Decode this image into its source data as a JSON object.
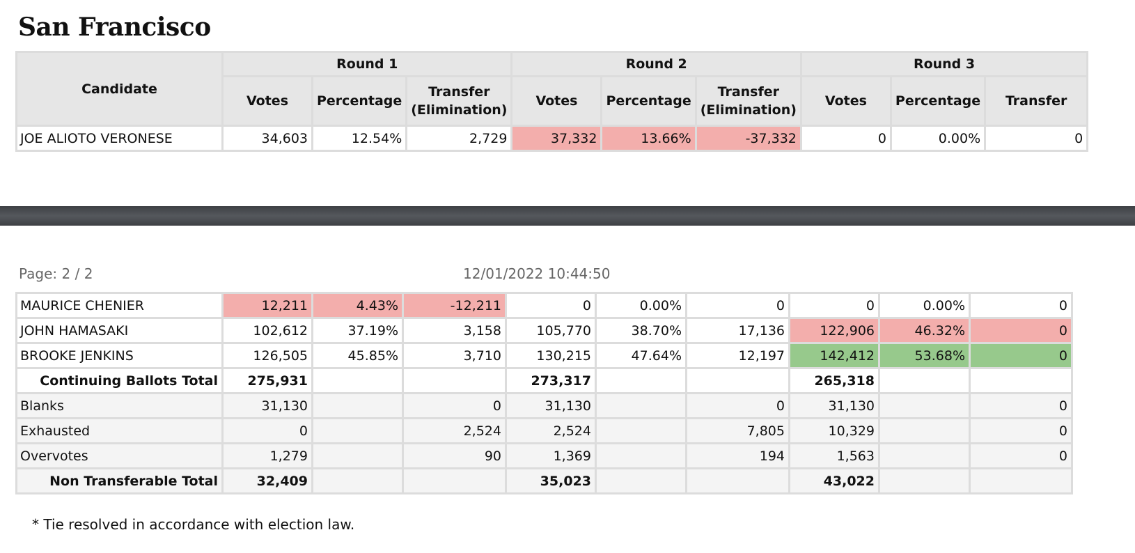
{
  "title": "San Francisco",
  "header": {
    "candidate": "Candidate",
    "rounds": [
      "Round 1",
      "Round 2",
      "Round 3"
    ],
    "sub": {
      "votes": "Votes",
      "percentage": "Percentage",
      "transfer_elim": "Transfer (Elimination)",
      "transfer": "Transfer"
    }
  },
  "top_rows": [
    {
      "name": "JOE ALIOTO VERONESE",
      "r1": [
        "34,603",
        "12.54%",
        "2,729"
      ],
      "r2": [
        "37,332",
        "13.66%",
        "-37,332"
      ],
      "r3": [
        "0",
        "0.00%",
        "0"
      ]
    }
  ],
  "page": {
    "label": "Page: 2 / 2",
    "timestamp": "12/01/2022 10:44:50"
  },
  "bottom_rows": [
    {
      "name": "MAURICE CHENIER",
      "r1": [
        "12,211",
        "4.43%",
        "-12,211"
      ],
      "r2": [
        "0",
        "0.00%",
        "0"
      ],
      "r3": [
        "0",
        "0.00%",
        "0"
      ]
    },
    {
      "name": "JOHN HAMASAKI",
      "r1": [
        "102,612",
        "37.19%",
        "3,158"
      ],
      "r2": [
        "105,770",
        "38.70%",
        "17,136"
      ],
      "r3": [
        "122,906",
        "46.32%",
        "0"
      ]
    },
    {
      "name": "BROOKE JENKINS",
      "r1": [
        "126,505",
        "45.85%",
        "3,710"
      ],
      "r2": [
        "130,215",
        "47.64%",
        "12,197"
      ],
      "r3": [
        "142,412",
        "53.68%",
        "0"
      ]
    },
    {
      "name": "Continuing Ballots Total",
      "r1": [
        "275,931",
        "",
        ""
      ],
      "r2": [
        "273,317",
        "",
        ""
      ],
      "r3": [
        "265,318",
        "",
        ""
      ]
    },
    {
      "name": "Blanks",
      "r1": [
        "31,130",
        "",
        "0"
      ],
      "r2": [
        "31,130",
        "",
        "0"
      ],
      "r3": [
        "31,130",
        "",
        "0"
      ]
    },
    {
      "name": "Exhausted",
      "r1": [
        "0",
        "",
        "2,524"
      ],
      "r2": [
        "2,524",
        "",
        "7,805"
      ],
      "r3": [
        "10,329",
        "",
        "0"
      ]
    },
    {
      "name": "Overvotes",
      "r1": [
        "1,279",
        "",
        "90"
      ],
      "r2": [
        "1,369",
        "",
        "194"
      ],
      "r3": [
        "1,563",
        "",
        "0"
      ]
    },
    {
      "name": "Non Transferable Total",
      "r1": [
        "32,409",
        "",
        ""
      ],
      "r2": [
        "35,023",
        "",
        ""
      ],
      "r3": [
        "43,022",
        "",
        ""
      ]
    }
  ],
  "footnote": "* Tie resolved in accordance with election law.",
  "colors": {
    "eliminated": "#f3aeac",
    "winner": "#97c98c",
    "header_bg": "#e6e6e6",
    "divider": "#4a4d52"
  }
}
